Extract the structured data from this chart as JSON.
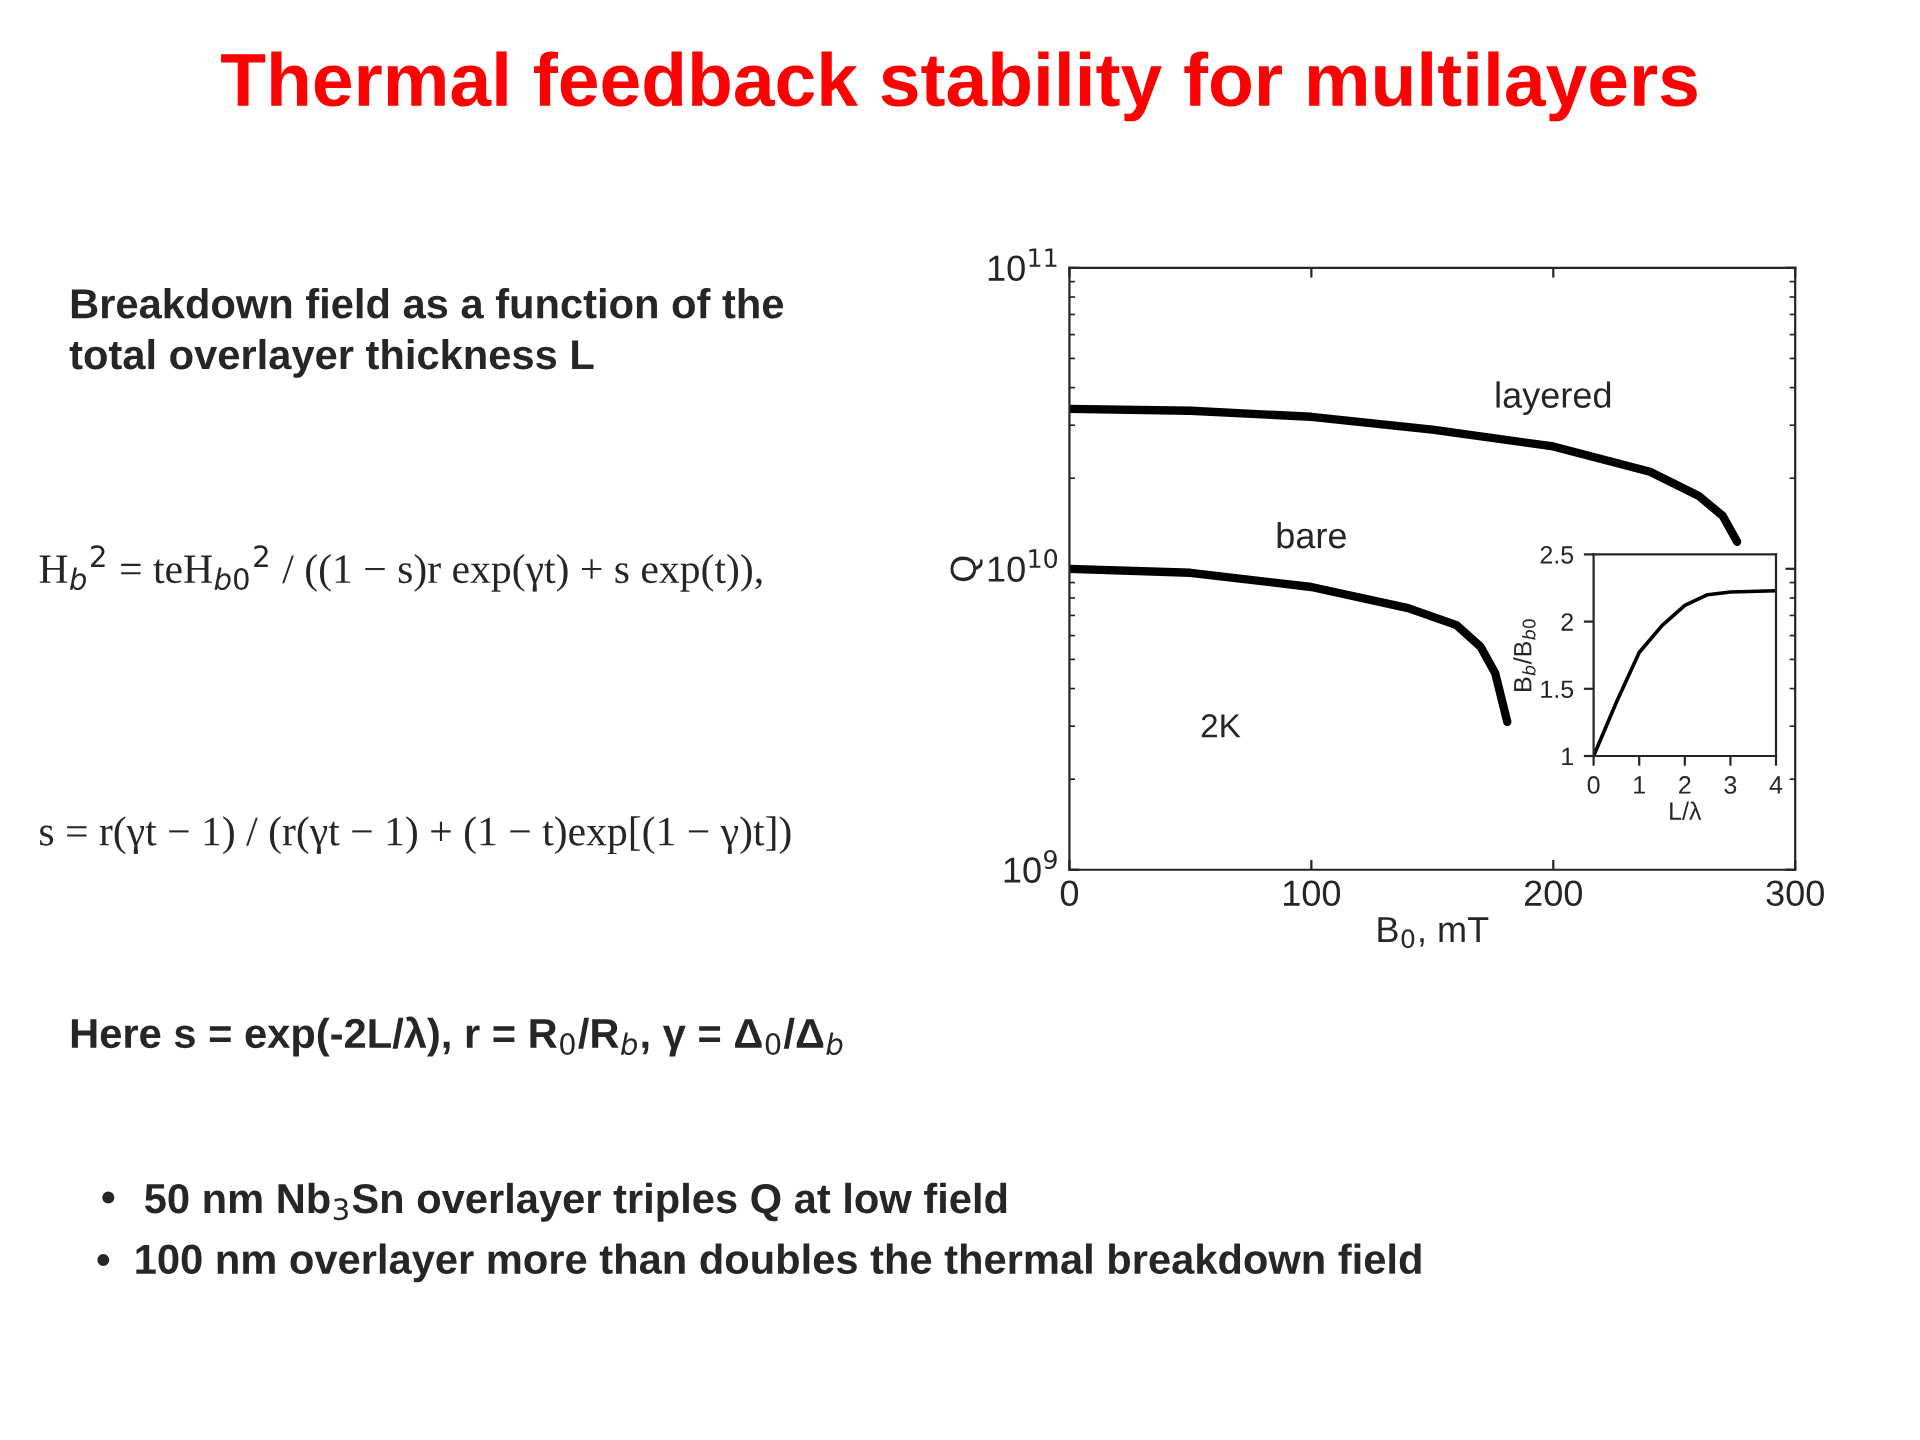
{
  "chart_data": [
    {
      "type": "line",
      "title": "Thermal feedback stability for multilayers",
      "subtitle": "Breakdown field as a function of the\ntotal overlayer thickness L",
      "xlabel": "B$_{0}$, mT",
      "ylabel": "Q",
      "log": true,
      "xlim": [
        0,
        300
      ],
      "ylim": [
        1000000000.0,
        100000000000.0
      ],
      "xticks": [
        0,
        100,
        200,
        300
      ],
      "yticks": [
        {
          "value": 1000000000.0,
          "label": "10$^{9}$"
        },
        {
          "value": 10000000000.0,
          "label": "10$^{10}$"
        },
        {
          "value": 100000000000.0,
          "label": "10$^{11}$"
        }
      ],
      "series": [
        {
          "name": "layered",
          "color": "#000000",
          "x": [
            0,
            50,
            100,
            150,
            200,
            240,
            260,
            270,
            276
          ],
          "values": [
            34000000000.0,
            33500000000.0,
            32000000000.0,
            29000000000.0,
            25500000000.0,
            21000000000.0,
            17500000000.0,
            15000000000.0,
            12300000000.0
          ]
        },
        {
          "name": "bare",
          "color": "#000000",
          "x": [
            0,
            50,
            100,
            140,
            160,
            170,
            176,
            181
          ],
          "values": [
            10000000000.0,
            9700000000.0,
            8700000000.0,
            7400000000.0,
            6500000000.0,
            5500000000.0,
            4500000000.0,
            3100000000.0
          ]
        }
      ],
      "annotations": [
        "2K",
        "H$_{b}$$^{2}$ = teH$_{b0}$$^{2}$ / ((1 − s)r exp(γt) + s exp(t)),",
        "s = r(γt − 1) / (r(γt − 1) + (1 − t)exp[(1 − γ)t])",
        "Here s = exp(-2L/λ), r = R$_{0}$/R$_{b}$, γ = Δ$_{0}$/Δ$_{b}$",
        "•  50 nm Nb$_{3}$Sn overlayer triples Q at low field",
        "•  100 nm overlayer more than doubles the thermal breakdown field"
      ]
    },
    {
      "type": "line",
      "xlabel": "L/λ",
      "ylabel": "B$_{b}$/B$_{b0}$",
      "xlim": [
        0,
        4
      ],
      "ylim": [
        1,
        2.5
      ],
      "xticks": [
        0,
        1,
        2,
        3,
        4
      ],
      "yticks": [
        1,
        1.5,
        2,
        2.5
      ],
      "series": [
        {
          "color": "#000000",
          "x": [
            0,
            0.5,
            1,
            1.5,
            2,
            2.5,
            3,
            4
          ],
          "values": [
            1,
            1.4,
            1.77,
            1.97,
            2.12,
            2.2,
            2.22,
            2.23
          ]
        }
      ]
    }
  ]
}
